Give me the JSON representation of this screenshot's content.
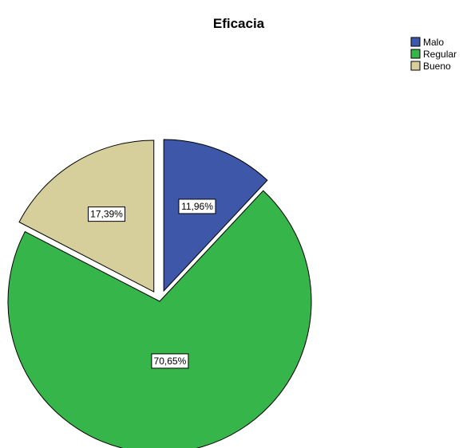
{
  "chart_data": {
    "type": "pie",
    "title": "Eficacia",
    "exploded": true,
    "slices": [
      {
        "label": "Malo",
        "value": 11.96,
        "display": "11,96%",
        "color": "#3f57a9"
      },
      {
        "label": "Regular",
        "value": 70.65,
        "display": "70,65%",
        "color": "#36b54a"
      },
      {
        "label": "Bueno",
        "value": 17.39,
        "display": "17,39%",
        "color": "#d6cf9c"
      }
    ],
    "legend_position": "top-right"
  }
}
